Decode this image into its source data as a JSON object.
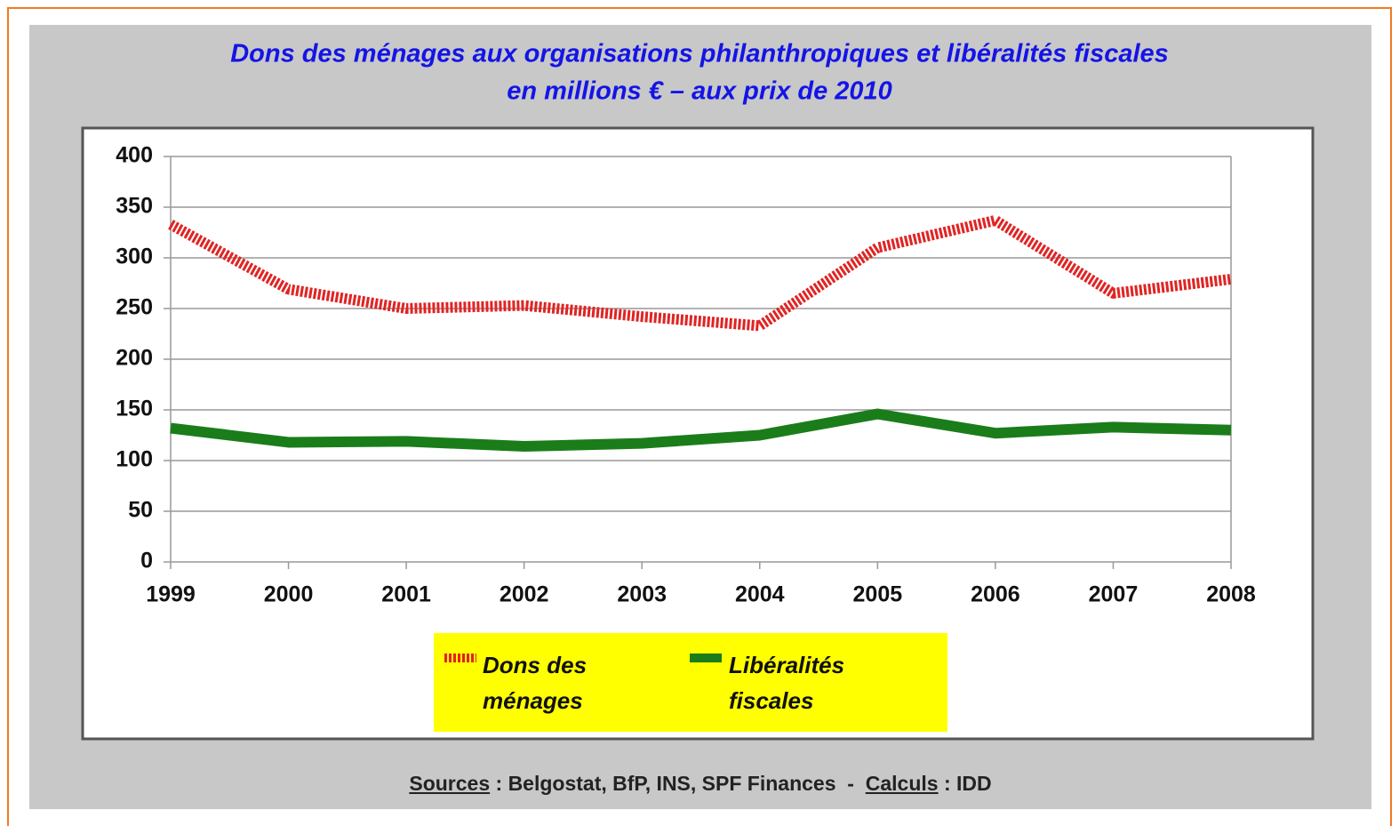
{
  "chart_data": {
    "type": "line",
    "title": [
      "Dons des ménages aux organisations philanthropiques et libéralités fiscales",
      "en millions € – aux prix de 2010"
    ],
    "categories": [
      "1999",
      "2000",
      "2001",
      "2002",
      "2003",
      "2004",
      "2005",
      "2006",
      "2007",
      "2008"
    ],
    "series": [
      {
        "name": "Dons des ménages",
        "color": "#e02424",
        "dashed": true,
        "values": [
          333,
          269,
          250,
          253,
          242,
          233,
          310,
          337,
          265,
          279
        ]
      },
      {
        "name": "Libéralités fiscales",
        "color": "#1a7d1a",
        "dashed": false,
        "values": [
          132,
          118,
          119,
          114,
          117,
          125,
          146,
          127,
          133,
          130
        ]
      }
    ],
    "ylim": [
      0,
      400
    ],
    "yticks": [
      0,
      50,
      100,
      150,
      200,
      250,
      300,
      350,
      400
    ],
    "grid": true,
    "legend": "bottom",
    "sources_label": "Sources",
    "sources": " : Belgostat, BfP, INS, SPF Finances  -  ",
    "calculs_label": "Calculs",
    "calculs": " : IDD"
  }
}
